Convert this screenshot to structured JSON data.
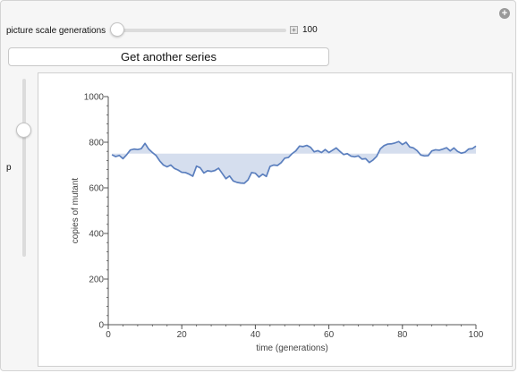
{
  "controls": {
    "scale_label": "picture scale generations",
    "scale_value": "100",
    "scale_fraction": 0.0,
    "button_label": "Get another series",
    "p_label": "p",
    "p_fraction": 0.26
  },
  "colors": {
    "line": "#5b7fbe",
    "fill": "#d5deee",
    "axis": "#555555"
  },
  "chart_data": {
    "type": "line",
    "xlabel": "time (generations)",
    "ylabel": "copies of mutant",
    "xlim": [
      0,
      100
    ],
    "ylim": [
      0,
      1000
    ],
    "xticks": [
      0,
      20,
      40,
      60,
      80,
      100
    ],
    "yticks": [
      0,
      200,
      400,
      600,
      800,
      1000
    ],
    "baseline": 750,
    "fill_to_baseline": true,
    "series": [
      {
        "x": [
          1,
          2,
          3,
          4,
          5,
          6,
          7,
          8,
          9,
          10,
          11,
          12,
          13,
          14,
          15,
          16,
          17,
          18,
          19,
          20,
          21,
          22,
          23,
          24,
          25,
          26,
          27,
          28,
          29,
          30,
          31,
          32,
          33,
          34,
          35,
          36,
          37,
          38,
          39,
          40,
          41,
          42,
          43,
          44,
          45,
          46,
          47,
          48,
          49,
          50,
          51,
          52,
          53,
          54,
          55,
          56,
          57,
          58,
          59,
          60,
          61,
          62,
          63,
          64,
          65,
          66,
          67,
          68,
          69,
          70,
          71,
          72,
          73,
          74,
          75,
          76,
          77,
          78,
          79,
          80,
          81,
          82,
          83,
          84,
          85,
          86,
          87,
          88,
          89,
          90,
          91,
          92,
          93,
          94,
          95,
          96,
          97,
          98,
          99,
          100
        ],
        "y": [
          745,
          737,
          742,
          728,
          745,
          766,
          770,
          768,
          772,
          795,
          770,
          755,
          742,
          718,
          700,
          692,
          700,
          685,
          678,
          668,
          667,
          660,
          651,
          695,
          688,
          665,
          675,
          672,
          676,
          686,
          663,
          640,
          652,
          630,
          624,
          621,
          620,
          635,
          667,
          664,
          647,
          660,
          650,
          694,
          700,
          698,
          710,
          730,
          733,
          750,
          762,
          783,
          781,
          786,
          778,
          758,
          763,
          755,
          768,
          755,
          765,
          775,
          760,
          746,
          750,
          739,
          736,
          740,
          726,
          728,
          711,
          722,
          738,
          771,
          785,
          792,
          793,
          797,
          803,
          790,
          800,
          779,
          775,
          763,
          744,
          740,
          741,
          762,
          767,
          765,
          770,
          776,
          762,
          775,
          760,
          752,
          756,
          770,
          772,
          783
        ]
      }
    ]
  }
}
